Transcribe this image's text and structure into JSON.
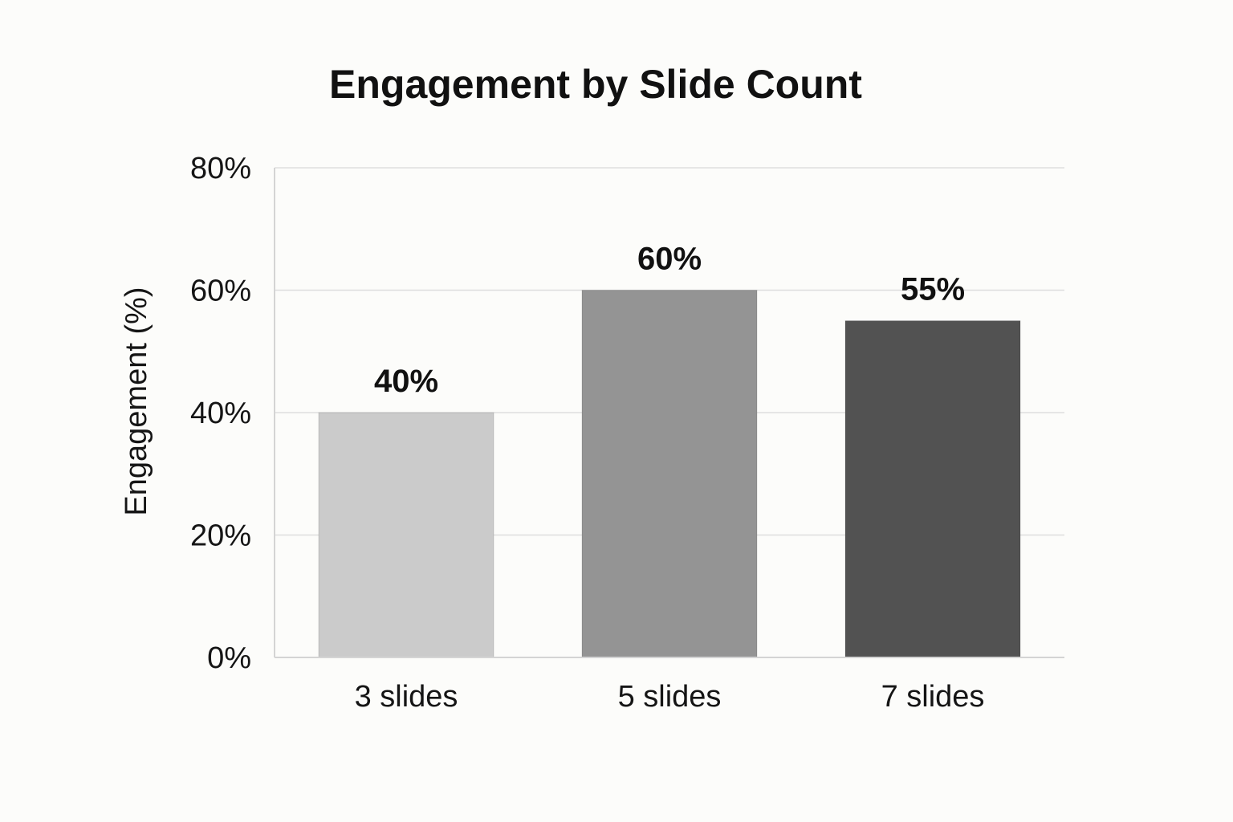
{
  "chart_data": {
    "type": "bar",
    "title": "Engagement by Slide Count",
    "xlabel": "",
    "ylabel": "Engagement (%)",
    "categories": [
      "3 slides",
      "5 slides",
      "7 slides"
    ],
    "values": [
      40,
      60,
      55
    ],
    "data_labels": [
      "40%",
      "60%",
      "55%"
    ],
    "ylim": [
      0,
      80
    ],
    "yticks": [
      0,
      20,
      40,
      60,
      80
    ],
    "ytick_labels": [
      "0%",
      "20%",
      "40%",
      "60%",
      "80%"
    ],
    "bar_colors": [
      "#cbcbcb",
      "#949494",
      "#525252"
    ],
    "grid": true,
    "legend": "none"
  }
}
